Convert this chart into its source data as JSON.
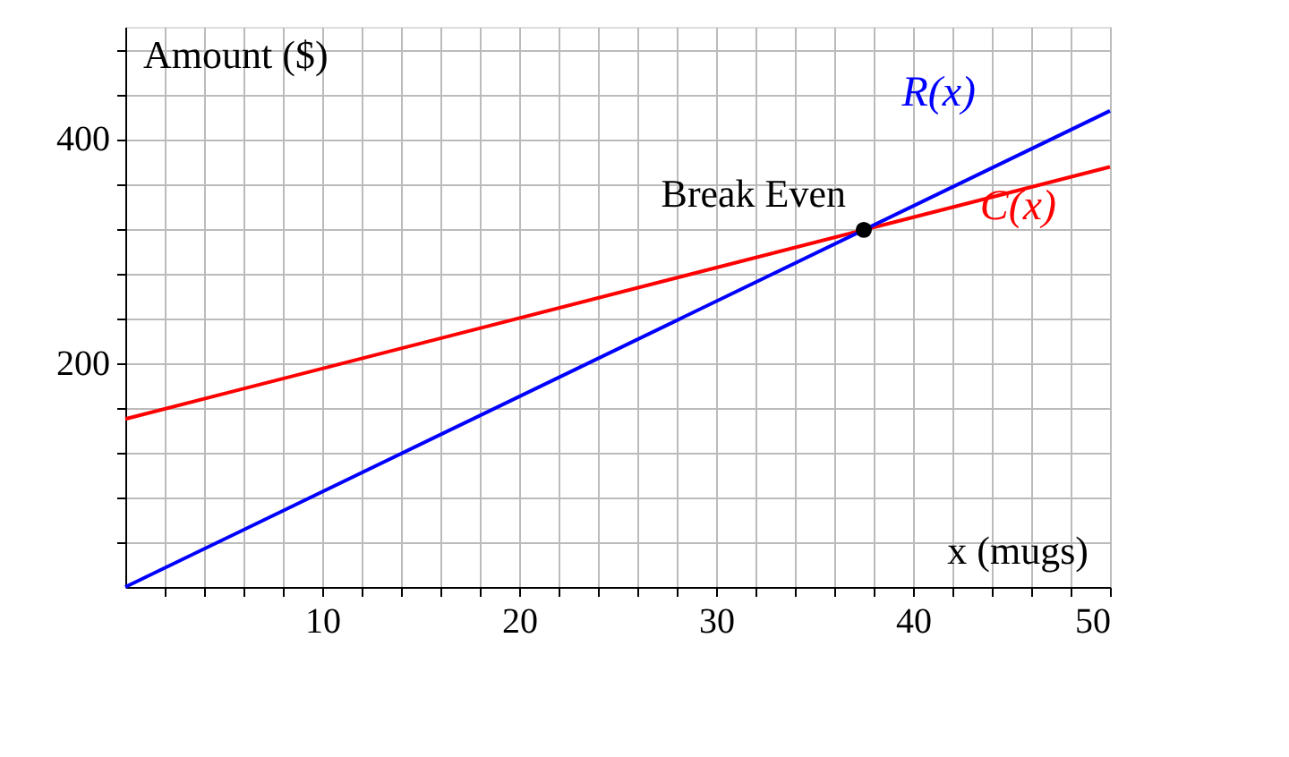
{
  "chart_data": {
    "type": "line",
    "xlabel": "x (mugs)",
    "ylabel": "Amount ($)",
    "xlim": [
      0,
      50
    ],
    "ylim": [
      0,
      500
    ],
    "xticks": [
      {
        "value": 2,
        "label": null
      },
      {
        "value": 4,
        "label": null
      },
      {
        "value": 6,
        "label": null
      },
      {
        "value": 8,
        "label": null
      },
      10,
      {
        "value": 12,
        "label": null
      },
      {
        "value": 14,
        "label": null
      },
      {
        "value": 16,
        "label": null
      },
      {
        "value": 18,
        "label": null
      },
      20,
      {
        "value": 22,
        "label": null
      },
      {
        "value": 24,
        "label": null
      },
      {
        "value": 26,
        "label": null
      },
      {
        "value": 28,
        "label": null
      },
      30,
      {
        "value": 32,
        "label": null
      },
      {
        "value": 34,
        "label": null
      },
      {
        "value": 36,
        "label": null
      },
      {
        "value": 38,
        "label": null
      },
      40,
      {
        "value": 42,
        "label": null
      },
      {
        "value": 44,
        "label": null
      },
      {
        "value": 46,
        "label": null
      },
      {
        "value": 48,
        "label": null
      },
      50
    ],
    "yticks": [
      {
        "value": 40,
        "label": null
      },
      {
        "value": 80,
        "label": null
      },
      {
        "value": 120,
        "label": null
      },
      {
        "value": 160,
        "label": null
      },
      200,
      {
        "value": 240,
        "label": null
      },
      {
        "value": 280,
        "label": null
      },
      {
        "value": 320,
        "label": null
      },
      {
        "value": 360,
        "label": null
      },
      400,
      {
        "value": 440,
        "label": null
      },
      {
        "value": 480,
        "label": null
      }
    ],
    "grid": true,
    "series": [
      {
        "name": "C(x)",
        "color": "#ff0000",
        "x": [
          0,
          50
        ],
        "values": [
          150,
          375
        ]
      },
      {
        "name": "R(x)",
        "color": "#0000ff",
        "x": [
          0,
          50
        ],
        "values": [
          0,
          425
        ]
      },
      {
        "type": "scatter",
        "color": "#000000",
        "x": [
          37.5
        ],
        "values": [
          318.75
        ],
        "marker": "circle"
      }
    ],
    "annotations": [
      {
        "text": "Break Even",
        "x": 37.5,
        "y": 318.75
      }
    ]
  }
}
